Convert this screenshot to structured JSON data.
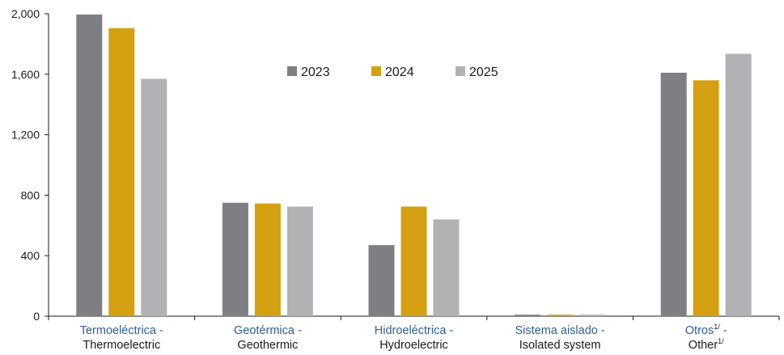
{
  "chart_data": {
    "type": "bar",
    "title": "",
    "xlabel": "",
    "ylabel": "",
    "ylim": [
      0,
      2000
    ],
    "yticks": [
      "0",
      "400",
      "800",
      "1,200",
      "1,600",
      "2,000"
    ],
    "ytick_values": [
      0,
      400,
      800,
      1200,
      1600,
      2000
    ],
    "grid": false,
    "legend_position": "top-center",
    "categories": [
      {
        "es": "Termoeléctrica -",
        "en": "Thermoelectric"
      },
      {
        "es": "Geotérmica -",
        "en": "Geothermic"
      },
      {
        "es": "Hidroeléctrica -",
        "en": "Hydroelectric"
      },
      {
        "es": "Sistema aislado -",
        "en": "Isolated system"
      },
      {
        "es": "Otros",
        "es_sup": "1/",
        "es_tail": " -",
        "en": "Other",
        "en_sup": "1/"
      }
    ],
    "series": [
      {
        "name": "2023",
        "color": "#7f7f83",
        "values": [
          1995,
          750,
          470,
          10,
          1610
        ]
      },
      {
        "name": "2024",
        "color": "#d4a012",
        "values": [
          1905,
          745,
          725,
          10,
          1560
        ]
      },
      {
        "name": "2025",
        "color": "#b2b2b5",
        "values": [
          1570,
          725,
          640,
          10,
          1735
        ]
      }
    ]
  }
}
